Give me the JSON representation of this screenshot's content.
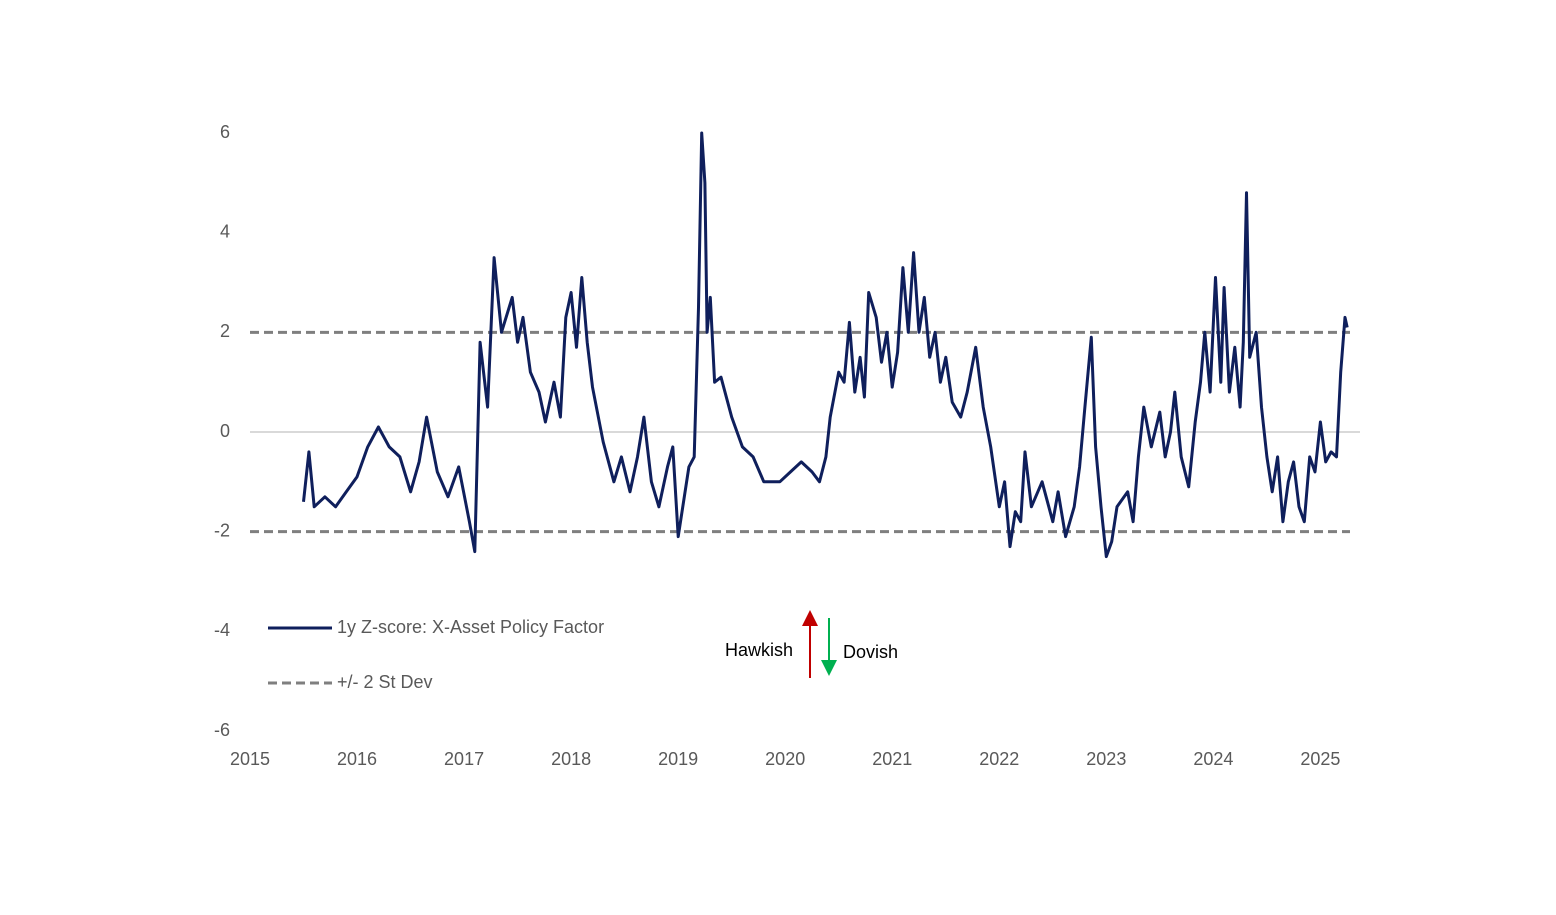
{
  "chart_data": {
    "type": "line",
    "x": [
      2015.5,
      2015.55,
      2015.6,
      2015.7,
      2015.8,
      2015.9,
      2016.0,
      2016.1,
      2016.2,
      2016.3,
      2016.4,
      2016.5,
      2016.58,
      2016.65,
      2016.75,
      2016.85,
      2016.95,
      2017.05,
      2017.1,
      2017.15,
      2017.22,
      2017.28,
      2017.35,
      2017.45,
      2017.5,
      2017.55,
      2017.62,
      2017.7,
      2017.76,
      2017.84,
      2017.9,
      2017.95,
      2018.0,
      2018.05,
      2018.1,
      2018.15,
      2018.2,
      2018.3,
      2018.4,
      2018.47,
      2018.55,
      2018.62,
      2018.68,
      2018.75,
      2018.82,
      2018.9,
      2018.95,
      2019.0,
      2019.1,
      2019.15,
      2019.19,
      2019.22,
      2019.25,
      2019.27,
      2019.3,
      2019.34,
      2019.4,
      2019.5,
      2019.6,
      2019.7,
      2019.8,
      2019.95,
      2020.05,
      2020.15,
      2020.25,
      2020.32,
      2020.38,
      2020.42,
      2020.5,
      2020.55,
      2020.6,
      2020.65,
      2020.7,
      2020.74,
      2020.78,
      2020.85,
      2020.9,
      2020.95,
      2021.0,
      2021.05,
      2021.1,
      2021.15,
      2021.2,
      2021.25,
      2021.3,
      2021.35,
      2021.4,
      2021.45,
      2021.5,
      2021.56,
      2021.64,
      2021.7,
      2021.78,
      2021.85,
      2021.92,
      2022.0,
      2022.05,
      2022.1,
      2022.15,
      2022.2,
      2022.24,
      2022.3,
      2022.4,
      2022.5,
      2022.55,
      2022.62,
      2022.7,
      2022.75,
      2022.8,
      2022.86,
      2022.9,
      2022.95,
      2023.0,
      2023.05,
      2023.1,
      2023.2,
      2023.25,
      2023.3,
      2023.35,
      2023.42,
      2023.5,
      2023.55,
      2023.6,
      2023.64,
      2023.7,
      2023.77,
      2023.83,
      2023.88,
      2023.92,
      2023.97,
      2024.02,
      2024.07,
      2024.1,
      2024.15,
      2024.2,
      2024.25,
      2024.28,
      2024.31,
      2024.34,
      2024.4,
      2024.45,
      2024.5,
      2024.55,
      2024.6,
      2024.65,
      2024.7,
      2024.75,
      2024.8,
      2024.85,
      2024.9,
      2024.95,
      2025.0,
      2025.05,
      2025.1,
      2025.15,
      2025.19,
      2025.23,
      2025.25
    ],
    "series": [
      {
        "name": "1y Z-score: X-Asset Policy Factor",
        "color": "#0f1f5c",
        "values": [
          -1.4,
          -0.4,
          -1.5,
          -1.3,
          -1.5,
          -1.2,
          -0.9,
          -0.3,
          0.1,
          -0.3,
          -0.5,
          -1.2,
          -0.6,
          0.3,
          -0.8,
          -1.3,
          -0.7,
          -1.8,
          -2.4,
          1.8,
          0.5,
          3.5,
          2.0,
          2.7,
          1.8,
          2.3,
          1.2,
          0.8,
          0.2,
          1.0,
          0.3,
          2.3,
          2.8,
          1.7,
          3.1,
          1.8,
          0.9,
          -0.2,
          -1.0,
          -0.5,
          -1.2,
          -0.5,
          0.3,
          -1.0,
          -1.5,
          -0.7,
          -0.3,
          -2.1,
          -0.7,
          -0.5,
          2.5,
          6.0,
          5.0,
          2.0,
          2.7,
          1.0,
          1.1,
          0.3,
          -0.3,
          -0.5,
          -1.0,
          -1.0,
          -0.8,
          -0.6,
          -0.8,
          -1.0,
          -0.5,
          0.3,
          1.2,
          1.0,
          2.2,
          0.8,
          1.5,
          0.7,
          2.8,
          2.3,
          1.4,
          2.0,
          0.9,
          1.6,
          3.3,
          2.0,
          3.6,
          2.0,
          2.7,
          1.5,
          2.0,
          1.0,
          1.5,
          0.6,
          0.3,
          0.8,
          1.7,
          0.5,
          -0.3,
          -1.5,
          -1.0,
          -2.3,
          -1.6,
          -1.8,
          -0.4,
          -1.5,
          -1.0,
          -1.8,
          -1.2,
          -2.1,
          -1.5,
          -0.7,
          0.5,
          1.9,
          -0.3,
          -1.5,
          -2.5,
          -2.2,
          -1.5,
          -1.2,
          -1.8,
          -0.5,
          0.5,
          -0.3,
          0.4,
          -0.5,
          0.0,
          0.8,
          -0.5,
          -1.1,
          0.2,
          1.0,
          2.0,
          0.8,
          3.1,
          1.0,
          2.9,
          0.8,
          1.7,
          0.5,
          1.8,
          4.8,
          1.5,
          2.0,
          0.5,
          -0.5,
          -1.2,
          -0.5,
          -1.8,
          -1.0,
          -0.6,
          -1.5,
          -1.8,
          -0.5,
          -0.8,
          0.2,
          -0.6,
          -0.4,
          -0.5,
          1.2,
          2.3,
          2.1
        ]
      }
    ],
    "reference_lines": {
      "name": "+/- 2 St Dev",
      "color": "#7f7f7f",
      "values": [
        2,
        -2
      ]
    },
    "annotations": [
      "Hawkish",
      "Dovish"
    ],
    "xlim": [
      2015,
      2025.37
    ],
    "xticks": [
      2015,
      2016,
      2017,
      2018,
      2019,
      2020,
      2021,
      2022,
      2023,
      2024,
      2025
    ],
    "ylim": [
      -6,
      6
    ],
    "yticks": [
      -6,
      -4,
      -2,
      0,
      2,
      4,
      6
    ]
  }
}
